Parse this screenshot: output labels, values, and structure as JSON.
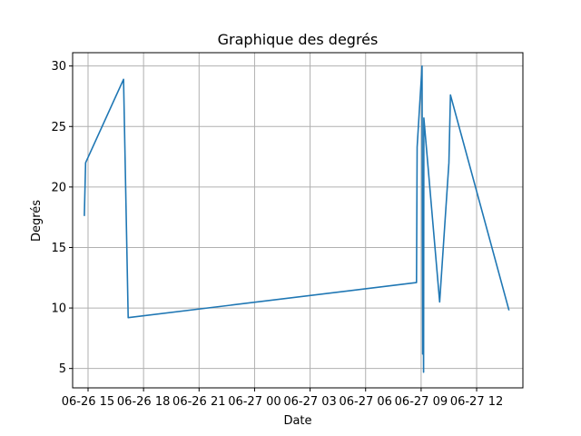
{
  "chart_data": {
    "type": "line",
    "title": "Graphique des degrés",
    "xlabel": "Date",
    "ylabel": "Degrés",
    "x_tick_labels": [
      "06-26 15",
      "06-26 18",
      "06-26 21",
      "06-27 00",
      "06-27 03",
      "06-27 06",
      "06-27 09",
      "06-27 12"
    ],
    "y_tick_labels": [
      "5",
      "10",
      "15",
      "20",
      "25",
      "30"
    ],
    "x_ticks": [
      "2023-06-26 15:00",
      "2023-06-26 18:00",
      "2023-06-26 21:00",
      "2023-06-27 00:00",
      "2023-06-27 03:00",
      "2023-06-27 06:00",
      "2023-06-27 09:00",
      "2023-06-27 12:00"
    ],
    "y_ticks": [
      5,
      10,
      15,
      20,
      25,
      30
    ],
    "xlim": [
      "2023-06-26 14:10",
      "2023-06-27 14:30"
    ],
    "ylim": [
      3.4,
      31.1
    ],
    "grid": true,
    "series": [
      {
        "color": "#1f77b4",
        "points": [
          {
            "x": "2023-06-26 14:48",
            "y": 17.6
          },
          {
            "x": "2023-06-26 14:52",
            "y": 22.0
          },
          {
            "x": "2023-06-26 16:55",
            "y": 28.9
          },
          {
            "x": "2023-06-26 17:10",
            "y": 9.2
          },
          {
            "x": "2023-06-27 08:45",
            "y": 12.1
          },
          {
            "x": "2023-06-27 08:47",
            "y": 23.3
          },
          {
            "x": "2023-06-27 09:03",
            "y": 30.0
          },
          {
            "x": "2023-06-27 09:05",
            "y": 6.2
          },
          {
            "x": "2023-06-27 09:06",
            "y": 17.4
          },
          {
            "x": "2023-06-27 09:08",
            "y": 4.7
          },
          {
            "x": "2023-06-27 09:09",
            "y": 25.7
          },
          {
            "x": "2023-06-27 10:00",
            "y": 10.5
          },
          {
            "x": "2023-06-27 10:30",
            "y": 22.0
          },
          {
            "x": "2023-06-27 10:35",
            "y": 27.6
          },
          {
            "x": "2023-06-27 13:45",
            "y": 9.8
          }
        ]
      }
    ]
  }
}
